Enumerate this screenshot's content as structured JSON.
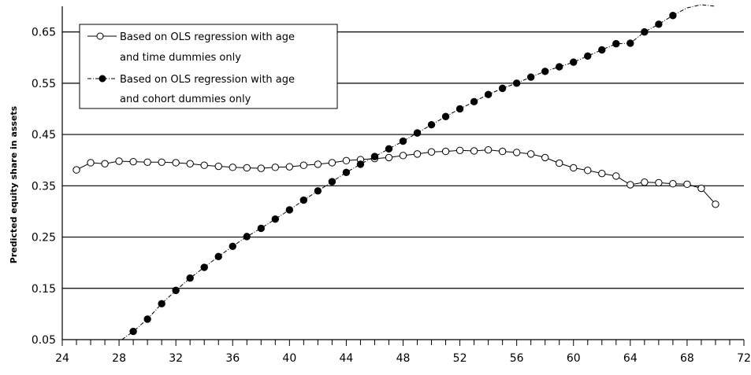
{
  "chart_data": {
    "type": "line",
    "title": "",
    "xlabel": "",
    "ylabel": "Predicted equity share in assets",
    "xlim": [
      24,
      72
    ],
    "ylim": [
      0.05,
      0.7
    ],
    "x_ticks": [
      "24",
      "28",
      "32",
      "36",
      "40",
      "44",
      "48",
      "52",
      "56",
      "60",
      "64",
      "68",
      "72"
    ],
    "y_ticks": [
      "0.05",
      "0.15",
      "0.25",
      "0.35",
      "0.45",
      "0.55",
      "0.65"
    ],
    "grid": "horizontal",
    "legend": "top-left",
    "series": [
      {
        "name": "Based on OLS regression with age and time dummies only",
        "name_lines": [
          "Based on OLS regression with age",
          "and time dummies only"
        ],
        "marker": "open-circle",
        "x": [
          25,
          26,
          27,
          28,
          29,
          30,
          31,
          32,
          33,
          34,
          35,
          36,
          37,
          38,
          39,
          40,
          41,
          42,
          43,
          44,
          45,
          46,
          47,
          48,
          49,
          50,
          51,
          52,
          53,
          54,
          55,
          56,
          57,
          58,
          59,
          60,
          61,
          62,
          63,
          64,
          65,
          66,
          67,
          68,
          69,
          70
        ],
        "y": [
          0.381,
          0.395,
          0.393,
          0.398,
          0.397,
          0.396,
          0.396,
          0.395,
          0.393,
          0.39,
          0.388,
          0.386,
          0.385,
          0.384,
          0.386,
          0.387,
          0.39,
          0.392,
          0.395,
          0.399,
          0.401,
          0.403,
          0.405,
          0.409,
          0.412,
          0.416,
          0.417,
          0.419,
          0.418,
          0.42,
          0.417,
          0.415,
          0.412,
          0.405,
          0.394,
          0.385,
          0.38,
          0.374,
          0.369,
          0.352,
          0.357,
          0.356,
          0.354,
          0.353,
          0.345,
          0.314
        ]
      },
      {
        "name": "Based on OLS regression with age and cohort dummies only",
        "name_lines": [
          "Based on OLS regression with age",
          "and cohort dummies only"
        ],
        "marker": "filled-circle",
        "x": [
          28.2,
          29,
          30,
          31,
          32,
          33,
          34,
          35,
          36,
          37,
          38,
          39,
          40,
          41,
          42,
          43,
          44,
          45,
          46,
          47,
          48,
          49,
          50,
          51,
          52,
          53,
          54,
          55,
          56,
          57,
          58,
          59,
          60,
          61,
          62,
          63,
          64,
          65,
          66,
          67,
          68,
          69,
          70
        ],
        "y": [
          0.05,
          0.066,
          0.09,
          0.12,
          0.146,
          0.17,
          0.191,
          0.212,
          0.232,
          0.251,
          0.267,
          0.285,
          0.303,
          0.322,
          0.34,
          0.358,
          0.376,
          0.392,
          0.407,
          0.422,
          0.437,
          0.453,
          0.469,
          0.485,
          0.5,
          0.514,
          0.528,
          0.54,
          0.55,
          0.562,
          0.573,
          0.582,
          0.591,
          0.603,
          0.615,
          0.627,
          0.628,
          0.65,
          0.665,
          0.682,
          0.697,
          0.703,
          0.7
        ],
        "markers_to_x": 67
      }
    ]
  }
}
